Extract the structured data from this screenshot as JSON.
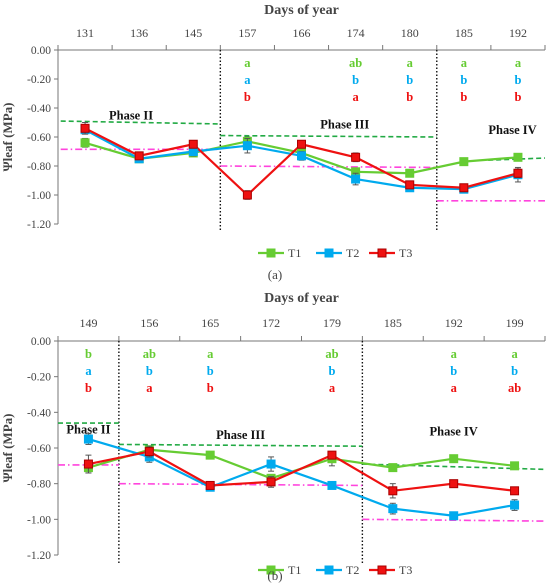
{
  "colors": {
    "T1": "#66cc33",
    "T2": "#00aaee",
    "T3": "#ee1111",
    "ref": "#ff44dd",
    "thr": "#22aa44",
    "axis": "#777777",
    "text": "#444444"
  },
  "chart_data": [
    {
      "type": "line",
      "panel_label": "(a)",
      "top_axis_title": "Days of year",
      "ylabel": "Ψleaf (MPa)",
      "ylim": [
        -1.2,
        0
      ],
      "yticks": [
        0,
        -0.2,
        -0.4,
        -0.6,
        -0.8,
        -1.0,
        -1.2
      ],
      "ytick_labels": [
        "0.00",
        "-0.20",
        "-0.40",
        "-0.60",
        "-0.80",
        "-1.00",
        "-1.20"
      ],
      "categories": [
        "131",
        "136",
        "145",
        "157",
        "166",
        "174",
        "180",
        "185",
        "192"
      ],
      "phase_dividers_after_index": [
        2.5,
        6.5
      ],
      "phases": [
        {
          "label": "Phase II",
          "x": 0.85,
          "y": -0.48
        },
        {
          "label": "Phase III",
          "x": 4.8,
          "y": -0.54
        },
        {
          "label": "Phase IV",
          "x": 7.9,
          "y": -0.58
        }
      ],
      "series": [
        {
          "name": "T1",
          "values": [
            -0.64,
            -0.75,
            -0.71,
            -0.63,
            -0.71,
            -0.84,
            -0.85,
            -0.77,
            -0.74
          ],
          "errors": [
            0.03,
            0.02,
            0.02,
            0.03,
            0.03,
            0.02,
            0.02,
            0.02,
            0.01
          ]
        },
        {
          "name": "T2",
          "values": [
            -0.55,
            -0.75,
            -0.7,
            -0.66,
            -0.73,
            -0.89,
            -0.95,
            -0.96,
            -0.86
          ],
          "errors": [
            0.03,
            0.02,
            0.03,
            0.05,
            0.03,
            0.04,
            0.02,
            0.02,
            0.05
          ]
        },
        {
          "name": "T3",
          "values": [
            -0.54,
            -0.73,
            -0.65,
            -1.0,
            -0.65,
            -0.74,
            -0.93,
            -0.95,
            -0.85
          ],
          "errors": [
            0.04,
            0.02,
            0.02,
            0.03,
            0.02,
            0.03,
            0.02,
            0.02,
            0.03
          ]
        }
      ],
      "ref_lines": [
        {
          "kind": "thr",
          "x0": -0.45,
          "x1": 2.5,
          "y0": -0.49,
          "y1": -0.51
        },
        {
          "kind": "thr",
          "x0": 2.5,
          "x1": 6.5,
          "y0": -0.59,
          "y1": -0.6
        },
        {
          "kind": "thr",
          "x0": 7.45,
          "x1": 8.55,
          "y0": -0.76,
          "y1": -0.745
        },
        {
          "kind": "ref",
          "x0": -0.45,
          "x1": 2.5,
          "y0": -0.685,
          "y1": -0.685
        },
        {
          "kind": "ref",
          "x0": 2.5,
          "x1": 6.5,
          "y0": -0.8,
          "y1": -0.81
        },
        {
          "kind": "ref",
          "x0": 6.5,
          "x1": 8.55,
          "y0": -1.04,
          "y1": -1.04
        }
      ],
      "letters": [
        {
          "x": 3,
          "v": [
            "a",
            "a",
            "b"
          ]
        },
        {
          "x": 5,
          "v": [
            "ab",
            "b",
            "a"
          ]
        },
        {
          "x": 6,
          "v": [
            "a",
            "b",
            "b"
          ]
        },
        {
          "x": 7,
          "v": [
            "a",
            "b",
            "b"
          ]
        },
        {
          "x": 8,
          "v": [
            "a",
            "b",
            "b"
          ]
        }
      ]
    },
    {
      "type": "line",
      "panel_label": "(b)",
      "top_axis_title": "Days of year",
      "ylabel": "Ψleaf (MPa)",
      "ylim": [
        -1.2,
        0
      ],
      "yticks": [
        0,
        -0.2,
        -0.4,
        -0.6,
        -0.8,
        -1.0,
        -1.2
      ],
      "ytick_labels": [
        "0.00",
        "-0.20",
        "-0.40",
        "-0.60",
        "-0.80",
        "-1.00",
        "-1.20"
      ],
      "categories": [
        "149",
        "156",
        "165",
        "172",
        "179",
        "185",
        "192",
        "199"
      ],
      "phase_dividers_after_index": [
        0.5,
        4.5
      ],
      "phases": [
        {
          "label": "Phase II",
          "x": 0.0,
          "y": -0.52
        },
        {
          "label": "Phase III",
          "x": 2.5,
          "y": -0.55
        },
        {
          "label": "Phase IV",
          "x": 6.0,
          "y": -0.53
        }
      ],
      "series": [
        {
          "name": "T1",
          "values": [
            -0.71,
            -0.61,
            -0.64,
            -0.77,
            -0.66,
            -0.71,
            -0.66,
            -0.7
          ],
          "errors": [
            0.03,
            0.02,
            0.02,
            0.02,
            0.04,
            0.02,
            0.01,
            0.02
          ]
        },
        {
          "name": "T2",
          "values": [
            -0.55,
            -0.65,
            -0.82,
            -0.69,
            -0.81,
            -0.94,
            -0.98,
            -0.92
          ],
          "errors": [
            0.03,
            0.03,
            0.02,
            0.04,
            0.02,
            0.03,
            0.01,
            0.03
          ]
        },
        {
          "name": "T3",
          "values": [
            -0.69,
            -0.62,
            -0.81,
            -0.79,
            -0.64,
            -0.84,
            -0.8,
            -0.84
          ],
          "errors": [
            0.05,
            0.03,
            0.02,
            0.03,
            0.02,
            0.04,
            0.02,
            0.02
          ]
        }
      ],
      "ref_lines": [
        {
          "kind": "thr",
          "x0": -0.5,
          "x1": 0.5,
          "y0": -0.46,
          "y1": -0.46
        },
        {
          "kind": "thr",
          "x0": 0.5,
          "x1": 4.5,
          "y0": -0.58,
          "y1": -0.59
        },
        {
          "kind": "thr",
          "x0": 4.5,
          "x1": 7.5,
          "y0": -0.69,
          "y1": -0.72
        },
        {
          "kind": "ref",
          "x0": -0.5,
          "x1": 0.5,
          "y0": -0.695,
          "y1": -0.695
        },
        {
          "kind": "ref",
          "x0": 0.5,
          "x1": 4.5,
          "y0": -0.8,
          "y1": -0.81
        },
        {
          "kind": "ref",
          "x0": 4.5,
          "x1": 7.5,
          "y0": -1.0,
          "y1": -1.01
        }
      ],
      "letters": [
        {
          "x": 0,
          "v": [
            "b",
            "a",
            "b"
          ]
        },
        {
          "x": 1,
          "v": [
            "ab",
            "b",
            "a"
          ]
        },
        {
          "x": 2,
          "v": [
            "a",
            "b",
            "b"
          ]
        },
        {
          "x": 4,
          "v": [
            "ab",
            "b",
            "a"
          ]
        },
        {
          "x": 6,
          "v": [
            "a",
            "b",
            "a"
          ]
        },
        {
          "x": 7,
          "v": [
            "a",
            "b",
            "ab"
          ]
        }
      ]
    }
  ]
}
